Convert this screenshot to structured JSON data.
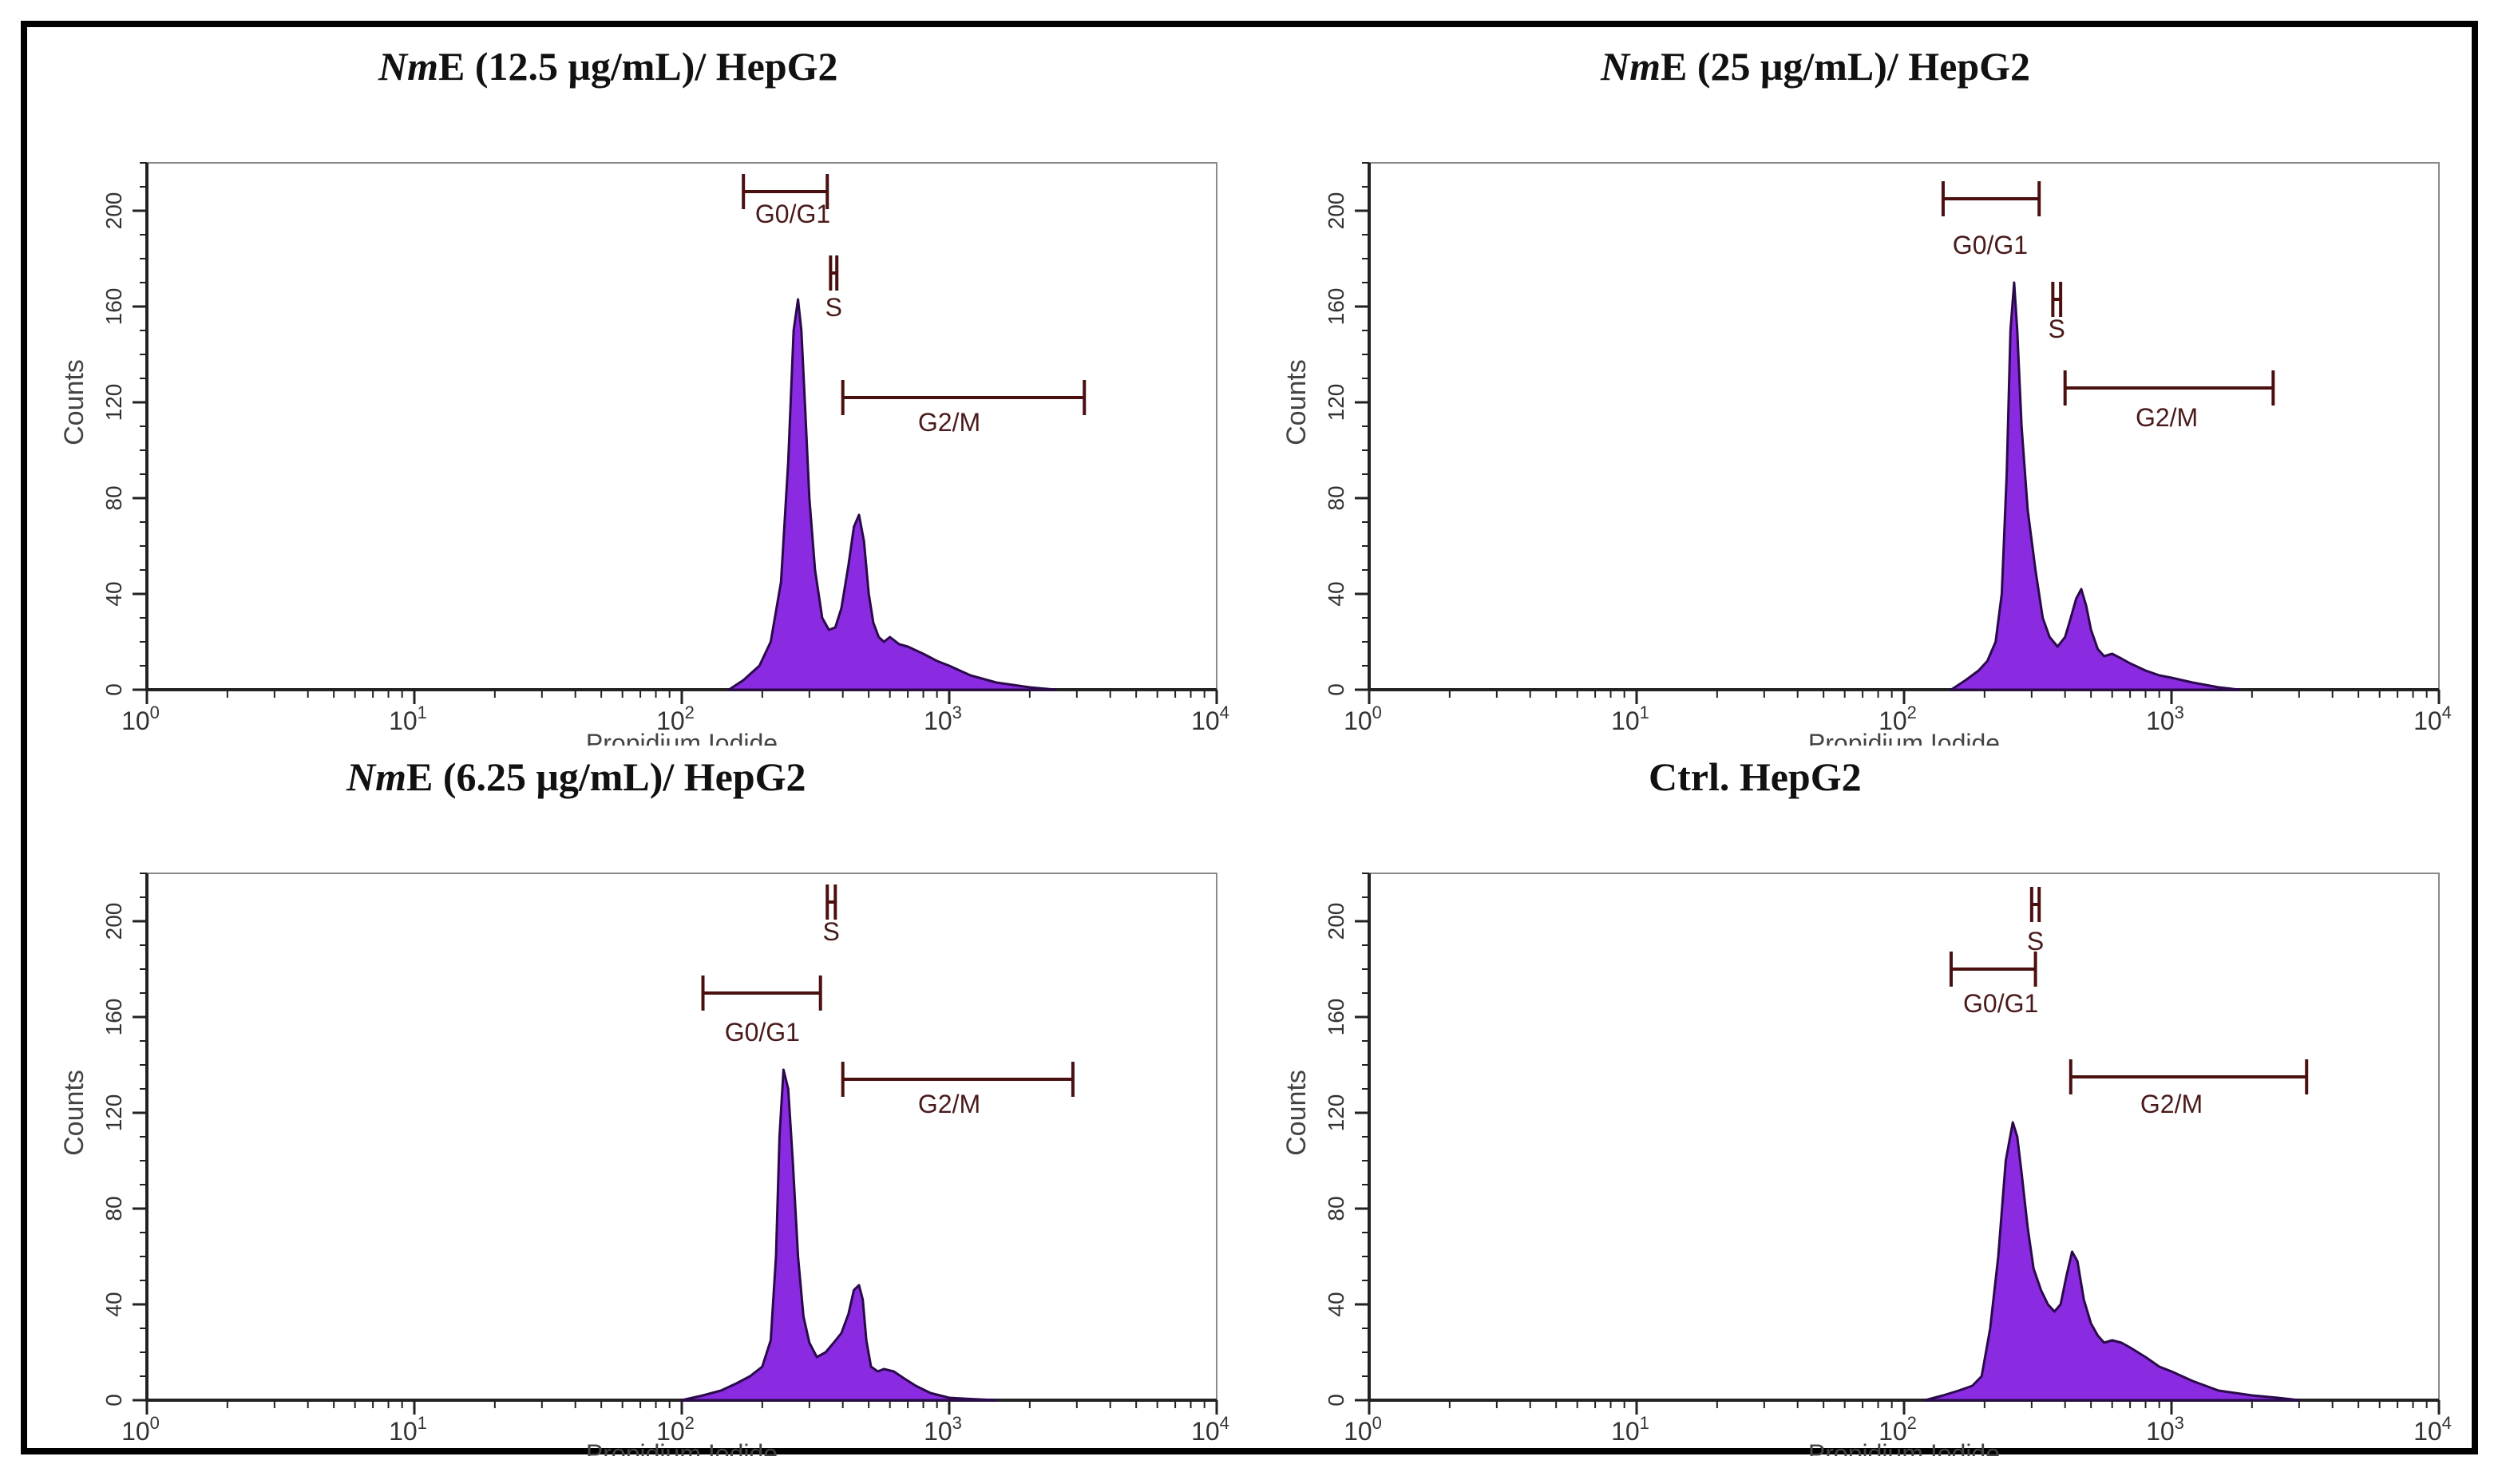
{
  "figure": {
    "panel_titles": [
      {
        "italic": "Nm",
        "rest": "E (12.5 μg/mL)/ HepG2"
      },
      {
        "italic": "Nm",
        "rest": "E (25 μg/mL)/ HepG2"
      },
      {
        "italic": "Nm",
        "rest": "E (6.25 μg/mL)/ HepG2"
      },
      {
        "italic": "",
        "rest": "Ctrl. HepG2"
      }
    ]
  },
  "colors": {
    "histogram_fill": "#8a2be2",
    "histogram_stroke": "#2a0a4a",
    "gate": "#4a1010",
    "axis": "#222222"
  },
  "chart_data": [
    {
      "type": "histogram",
      "title": "NmE (12.5 μg/mL)/ HepG2",
      "xlabel": "Propidium Iodide",
      "ylabel": "Counts",
      "xscale": "log",
      "xlim": [
        1,
        10000
      ],
      "ylim": [
        0,
        220
      ],
      "x_ticks": [
        1,
        10,
        100,
        1000,
        10000
      ],
      "x_tick_labels": [
        [
          "10",
          "0"
        ],
        [
          "10",
          "1"
        ],
        [
          "10",
          "2"
        ],
        [
          "10",
          "3"
        ],
        [
          "10",
          "4"
        ]
      ],
      "y_ticks": [
        0,
        40,
        80,
        120,
        160,
        200
      ],
      "y_tick_labels": [
        "0",
        "40",
        "80",
        "120",
        "160",
        "200"
      ],
      "x": [
        150,
        170,
        195,
        215,
        235,
        250,
        262,
        272,
        280,
        290,
        300,
        315,
        335,
        355,
        375,
        395,
        420,
        440,
        460,
        480,
        500,
        520,
        545,
        570,
        600,
        650,
        700,
        800,
        900,
        1000,
        1200,
        1500,
        2000,
        2500
      ],
      "values": [
        0,
        4,
        10,
        20,
        45,
        95,
        150,
        163,
        150,
        115,
        80,
        50,
        30,
        25,
        26,
        34,
        52,
        68,
        73,
        62,
        40,
        28,
        22,
        20,
        22,
        19,
        18,
        15,
        12,
        10,
        6,
        3,
        1,
        0
      ],
      "gates": [
        {
          "label": "G0/G1",
          "x_range": [
            170,
            350
          ],
          "y": 208,
          "label_y": 195,
          "label_x": 260
        },
        {
          "label": "S",
          "x_range": [
            360,
            380
          ],
          "y": 174,
          "label_y": 156,
          "label_x": 370
        },
        {
          "label": "G2/M",
          "x_range": [
            400,
            3200
          ],
          "y": 122,
          "label_y": 108,
          "label_x": 1000
        }
      ]
    },
    {
      "type": "histogram",
      "title": "NmE (25 μg/mL)/ HepG2",
      "xlabel": "Propidium Iodide",
      "ylabel": "Counts",
      "xscale": "log",
      "xlim": [
        1,
        10000
      ],
      "ylim": [
        0,
        220
      ],
      "x_ticks": [
        1,
        10,
        100,
        1000,
        10000
      ],
      "x_tick_labels": [
        [
          "10",
          "0"
        ],
        [
          "10",
          "1"
        ],
        [
          "10",
          "2"
        ],
        [
          "10",
          "3"
        ],
        [
          "10",
          "4"
        ]
      ],
      "y_ticks": [
        0,
        40,
        80,
        120,
        160,
        200
      ],
      "y_tick_labels": [
        "0",
        "40",
        "80",
        "120",
        "160",
        "200"
      ],
      "x": [
        150,
        170,
        190,
        205,
        220,
        232,
        242,
        250,
        258,
        265,
        275,
        290,
        310,
        330,
        350,
        375,
        400,
        420,
        440,
        460,
        480,
        500,
        530,
        560,
        600,
        650,
        700,
        800,
        900,
        1000,
        1200,
        1500,
        1800
      ],
      "values": [
        0,
        4,
        8,
        12,
        20,
        40,
        90,
        150,
        170,
        150,
        110,
        75,
        50,
        30,
        22,
        18,
        22,
        30,
        38,
        42,
        35,
        25,
        17,
        14,
        15,
        13,
        11,
        8,
        6,
        5,
        3,
        1,
        0
      ],
      "gates": [
        {
          "label": "G0/G1",
          "x_range": [
            140,
            320
          ],
          "y": 205,
          "label_y": 182,
          "label_x": 210
        },
        {
          "label": "S",
          "x_range": [
            360,
            385
          ],
          "y": 163,
          "label_y": 147,
          "label_x": 372
        },
        {
          "label": "G2/M",
          "x_range": [
            400,
            2400
          ],
          "y": 126,
          "label_y": 110,
          "label_x": 960
        }
      ]
    },
    {
      "type": "histogram",
      "title": "NmE (6.25 μg/mL)/ HepG2",
      "xlabel": "Propidium Iodide",
      "ylabel": "Counts",
      "xscale": "log",
      "xlim": [
        1,
        10000
      ],
      "ylim": [
        0,
        220
      ],
      "x_ticks": [
        1,
        10,
        100,
        1000,
        10000
      ],
      "x_tick_labels": [
        [
          "10",
          "0"
        ],
        [
          "10",
          "1"
        ],
        [
          "10",
          "2"
        ],
        [
          "10",
          "3"
        ],
        [
          "10",
          "4"
        ]
      ],
      "y_ticks": [
        0,
        40,
        80,
        120,
        160,
        200
      ],
      "y_tick_labels": [
        "0",
        "40",
        "80",
        "120",
        "160",
        "200"
      ],
      "x": [
        100,
        120,
        140,
        160,
        180,
        200,
        215,
        225,
        232,
        240,
        250,
        260,
        272,
        285,
        300,
        320,
        345,
        370,
        395,
        420,
        440,
        460,
        475,
        490,
        510,
        540,
        570,
        620,
        680,
        750,
        850,
        1000,
        1200,
        1500
      ],
      "values": [
        0,
        2,
        4,
        7,
        10,
        14,
        25,
        60,
        110,
        138,
        130,
        100,
        60,
        35,
        24,
        18,
        20,
        24,
        28,
        36,
        46,
        48,
        42,
        25,
        14,
        12,
        13,
        12,
        9,
        6,
        3,
        1,
        0.5,
        0
      ],
      "gates": [
        {
          "label": "S",
          "x_range": [
            350,
            375
          ],
          "y": 208,
          "label_y": 192,
          "label_x": 362
        },
        {
          "label": "G0/G1",
          "x_range": [
            120,
            330
          ],
          "y": 170,
          "label_y": 150,
          "label_x": 200
        },
        {
          "label": "G2/M",
          "x_range": [
            400,
            2900
          ],
          "y": 134,
          "label_y": 120,
          "label_x": 1000
        }
      ]
    },
    {
      "type": "histogram",
      "title": "Ctrl. HepG2",
      "xlabel": "Propidium Iodide",
      "ylabel": "Counts",
      "xscale": "log",
      "xlim": [
        1,
        10000
      ],
      "ylim": [
        0,
        220
      ],
      "x_ticks": [
        1,
        10,
        100,
        1000,
        10000
      ],
      "x_tick_labels": [
        [
          "10",
          "0"
        ],
        [
          "10",
          "1"
        ],
        [
          "10",
          "2"
        ],
        [
          "10",
          "3"
        ],
        [
          "10",
          "4"
        ]
      ],
      "y_ticks": [
        0,
        40,
        80,
        120,
        160,
        200
      ],
      "y_tick_labels": [
        "0",
        "40",
        "80",
        "120",
        "160",
        "200"
      ],
      "x": [
        120,
        140,
        160,
        180,
        195,
        210,
        225,
        240,
        255,
        265,
        275,
        290,
        305,
        325,
        345,
        365,
        385,
        405,
        425,
        445,
        470,
        500,
        530,
        560,
        600,
        650,
        700,
        800,
        900,
        1000,
        1200,
        1500,
        2000,
        2500,
        3000
      ],
      "values": [
        0,
        2,
        4,
        6,
        10,
        30,
        60,
        100,
        116,
        110,
        95,
        72,
        55,
        46,
        40,
        37,
        40,
        52,
        62,
        58,
        42,
        32,
        27,
        24,
        25,
        24,
        22,
        18,
        14,
        12,
        8,
        4,
        2,
        1,
        0
      ],
      "gates": [
        {
          "label": "S",
          "x_range": [
            300,
            320
          ],
          "y": 207,
          "label_y": 188,
          "label_x": 310
        },
        {
          "label": "G0/G1",
          "x_range": [
            150,
            310
          ],
          "y": 180,
          "label_y": 162,
          "label_x": 230
        },
        {
          "label": "G2/M",
          "x_range": [
            420,
            3200
          ],
          "y": 135,
          "label_y": 120,
          "label_x": 1000
        }
      ]
    }
  ]
}
